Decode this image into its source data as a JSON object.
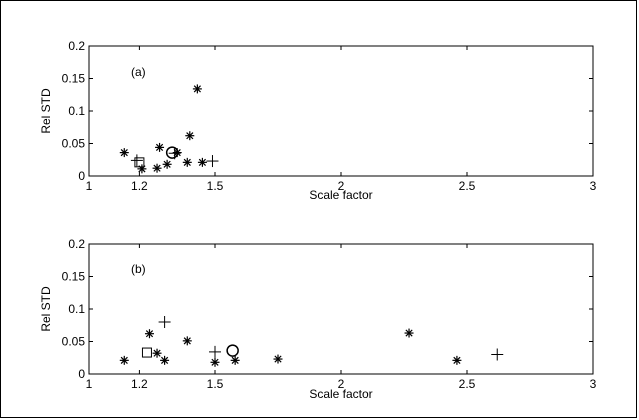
{
  "chart_data": [
    {
      "type": "scatter",
      "panel_label": "(a)",
      "xlabel": "Scale factor",
      "ylabel": "Rel STD",
      "xlim": [
        1,
        3
      ],
      "ylim": [
        0,
        0.2
      ],
      "xticks": [
        1,
        1.2,
        1.5,
        2,
        2.5,
        3
      ],
      "yticks": [
        0,
        0.05,
        0.1,
        0.15,
        0.2
      ],
      "xtick_labels": [
        "1",
        "1.2",
        "1.5",
        "2",
        "2.5",
        "3"
      ],
      "ytick_labels": [
        "0",
        "0.05",
        "0.1",
        "0.15",
        "0.2"
      ],
      "series": [
        {
          "marker": "asterisk",
          "points": [
            [
              1.14,
              0.036
            ],
            [
              1.21,
              0.011
            ],
            [
              1.27,
              0.012
            ],
            [
              1.28,
              0.044
            ],
            [
              1.31,
              0.018
            ],
            [
              1.35,
              0.036
            ],
            [
              1.39,
              0.021
            ],
            [
              1.4,
              0.062
            ],
            [
              1.43,
              0.134
            ],
            [
              1.45,
              0.021
            ]
          ]
        },
        {
          "marker": "plus",
          "points": [
            [
              1.19,
              0.024
            ],
            [
              1.49,
              0.023
            ]
          ]
        },
        {
          "marker": "square",
          "points": [
            [
              1.2,
              0.021
            ]
          ]
        },
        {
          "marker": "circle",
          "points": [
            [
              1.33,
              0.036
            ]
          ]
        },
        {
          "marker": "plus",
          "points": [
            [
              1.34,
              0.035
            ]
          ]
        }
      ]
    },
    {
      "type": "scatter",
      "panel_label": "(b)",
      "xlabel": "Scale factor",
      "ylabel": "Rel STD",
      "xlim": [
        1,
        3
      ],
      "ylim": [
        0,
        0.2
      ],
      "xticks": [
        1,
        1.2,
        1.5,
        2,
        2.5,
        3
      ],
      "yticks": [
        0,
        0.05,
        0.1,
        0.15,
        0.2
      ],
      "xtick_labels": [
        "1",
        "1.2",
        "1.5",
        "2",
        "2.5",
        "3"
      ],
      "ytick_labels": [
        "0",
        "0.05",
        "0.1",
        "0.15",
        "0.2"
      ],
      "series": [
        {
          "marker": "asterisk",
          "points": [
            [
              1.14,
              0.021
            ],
            [
              1.24,
              0.062
            ],
            [
              1.27,
              0.032
            ],
            [
              1.3,
              0.021
            ],
            [
              1.39,
              0.051
            ],
            [
              1.5,
              0.018
            ],
            [
              1.58,
              0.021
            ],
            [
              1.75,
              0.023
            ],
            [
              2.27,
              0.063
            ],
            [
              2.46,
              0.021
            ]
          ]
        },
        {
          "marker": "plus",
          "points": [
            [
              1.3,
              0.08
            ],
            [
              1.5,
              0.034
            ],
            [
              2.62,
              0.03
            ]
          ]
        },
        {
          "marker": "square",
          "points": [
            [
              1.23,
              0.033
            ]
          ]
        },
        {
          "marker": "circle",
          "points": [
            [
              1.57,
              0.036
            ]
          ]
        }
      ]
    }
  ]
}
